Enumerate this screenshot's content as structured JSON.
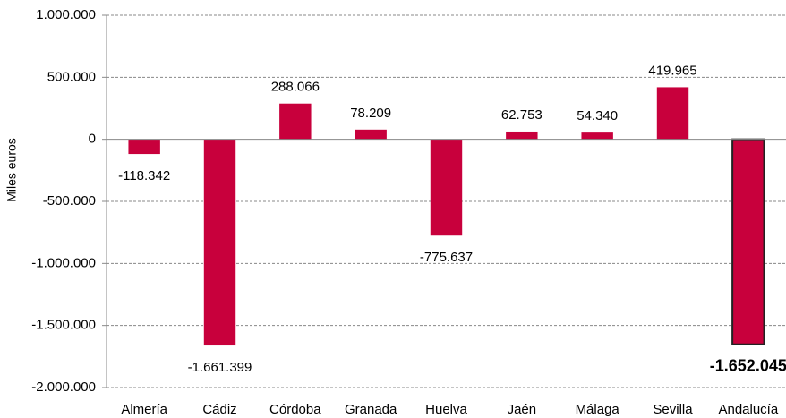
{
  "chart_data": {
    "type": "bar",
    "y_label": "Miles euros",
    "categories": [
      "Almería",
      "Cádiz",
      "Córdoba",
      "Granada",
      "Huelva",
      "Jaén",
      "Málaga",
      "Sevilla",
      "Andalucía"
    ],
    "values": [
      -118342,
      -1661399,
      288066,
      78209,
      -775637,
      62753,
      54340,
      419965,
      -1652045
    ],
    "value_labels": [
      "-118.342",
      "-1.661.399",
      "288.066",
      "78.209",
      "-775.637",
      "62.753",
      "54.340",
      "419.965",
      "-1.652.045"
    ],
    "color": "#c8003c",
    "highlight_index": 8,
    "ylim": [
      -2000000,
      1000000
    ],
    "yticks": [
      {
        "value": -2000000,
        "label": "-2.000.000"
      },
      {
        "value": -1500000,
        "label": "-1.500.000"
      },
      {
        "value": -1000000,
        "label": "-1.000.000"
      },
      {
        "value": -500000,
        "label": "-500.000"
      },
      0,
      {
        "value": 500000,
        "label": "500.000"
      },
      {
        "value": 1000000,
        "label": "1.000.000"
      }
    ],
    "grid": true
  }
}
